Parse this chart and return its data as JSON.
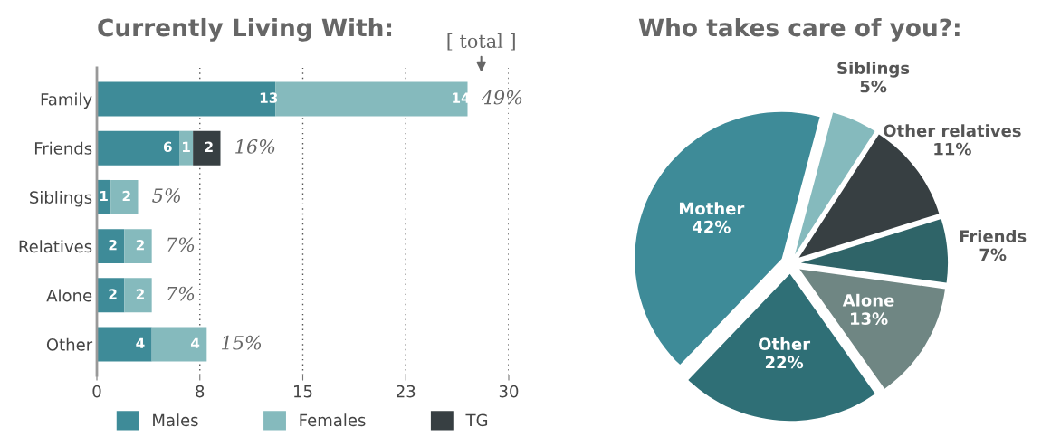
{
  "chart_data": [
    {
      "type": "bar",
      "orientation": "horizontal",
      "stacked": true,
      "title": "Currently Living With:",
      "categories": [
        "Family",
        "Friends",
        "Siblings",
        "Relatives",
        "Alone",
        "Other"
      ],
      "series": [
        {
          "name": "Males",
          "color": "#3e8b98",
          "values": [
            13,
            6,
            1,
            2,
            2,
            4
          ]
        },
        {
          "name": "Females",
          "color": "#85babd",
          "values": [
            14,
            1,
            2,
            2,
            2,
            4
          ]
        },
        {
          "name": "TG",
          "color": "#373f42",
          "values": [
            null,
            2,
            null,
            null,
            null,
            null
          ]
        }
      ],
      "annotations": [
        "[ total ]",
        {
          "text": "49%",
          "x": 27,
          "y": "Family"
        },
        {
          "text": "16%",
          "x": 9,
          "y": "Friends"
        },
        {
          "text": "5%",
          "x": 3,
          "y": "Siblings"
        },
        {
          "text": "7%",
          "x": 4,
          "y": "Relatives"
        },
        {
          "text": "7%",
          "x": 4,
          "y": "Alone"
        },
        {
          "text": "15%",
          "x": 8,
          "y": "Other"
        }
      ],
      "xlim": [
        0,
        30
      ],
      "xticks": [
        0,
        {
          "value": 7.5,
          "label": "8"
        },
        15,
        {
          "value": 22.5,
          "label": "23"
        },
        30
      ],
      "grid": "x",
      "data_labels": true,
      "legend": "bottom"
    },
    {
      "type": "pie",
      "title": "Who takes care of you?:",
      "categories": [
        "Siblings",
        "Other relatives",
        "Friends",
        "Alone",
        "Other",
        "Mother"
      ],
      "values": [
        5,
        11,
        7,
        13,
        22,
        42
      ],
      "value_labels": [
        "5%",
        "11%",
        "7%",
        "13%",
        "22%",
        "42%"
      ],
      "colors": [
        "#85babd",
        "#373f42",
        "#2f6468",
        "#6f8683",
        "#2f6f76",
        "#3e8b98"
      ],
      "legend": false
    }
  ]
}
